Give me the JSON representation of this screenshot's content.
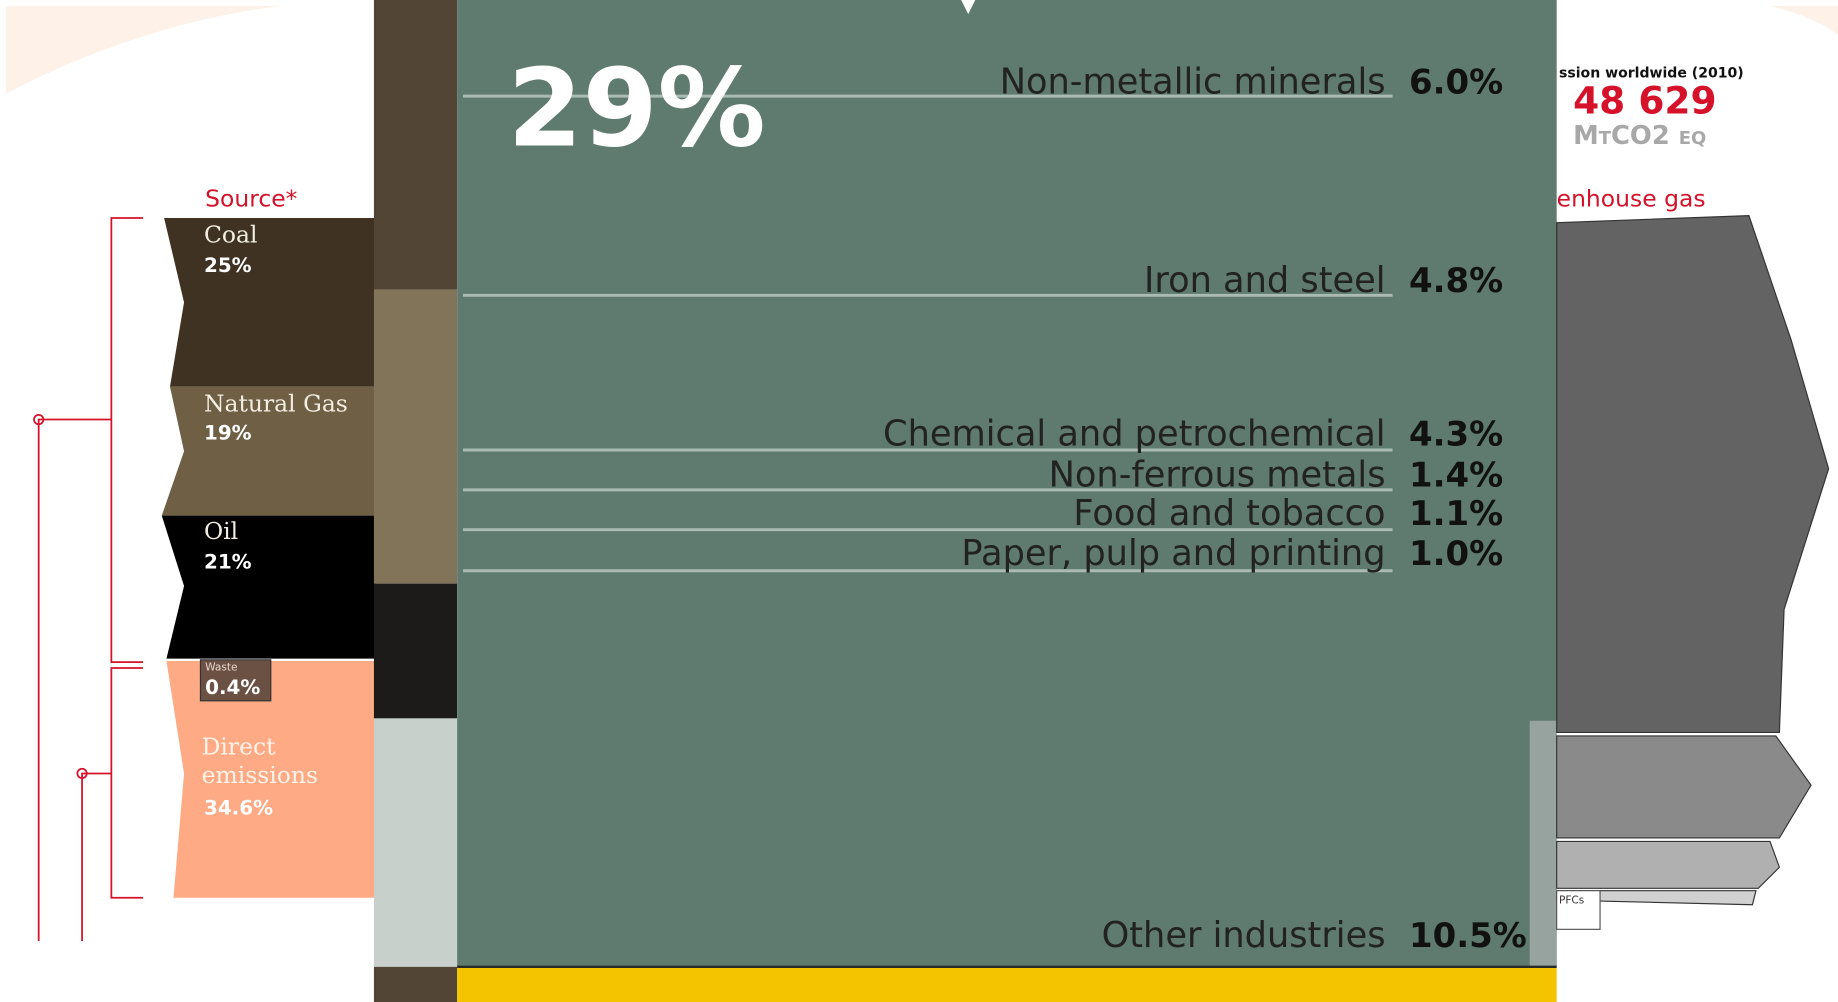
{
  "source": {
    "title": "Source*",
    "items": [
      {
        "label": "Coal",
        "value": "25%"
      },
      {
        "label": "Natural Gas",
        "value": "19%"
      },
      {
        "label": "Oil",
        "value": "21%"
      },
      {
        "label": "Waste",
        "value": "0.4%"
      },
      {
        "label": "Direct emissions",
        "value": "34.6%"
      }
    ]
  },
  "industry": {
    "share": "29%",
    "sectors": [
      {
        "name": "Non-metallic minerals",
        "value": "6.0%"
      },
      {
        "name": "Iron and steel",
        "value": "4.8%"
      },
      {
        "name": "Chemical and petrochemical",
        "value": "4.3%"
      },
      {
        "name": "Non-ferrous metals",
        "value": "1.4%"
      },
      {
        "name": "Food and tobacco",
        "value": "1.1%"
      },
      {
        "name": "Paper, pulp and printing",
        "value": "1.0%"
      },
      {
        "name": "Other industries",
        "value": "10.5%"
      }
    ]
  },
  "totals": {
    "caption": "ssion worldwide (2010)",
    "value": "48 629",
    "unit": "MtCO2 eq"
  },
  "gas": {
    "title": "enhouse gas",
    "label": "PFCs"
  }
}
